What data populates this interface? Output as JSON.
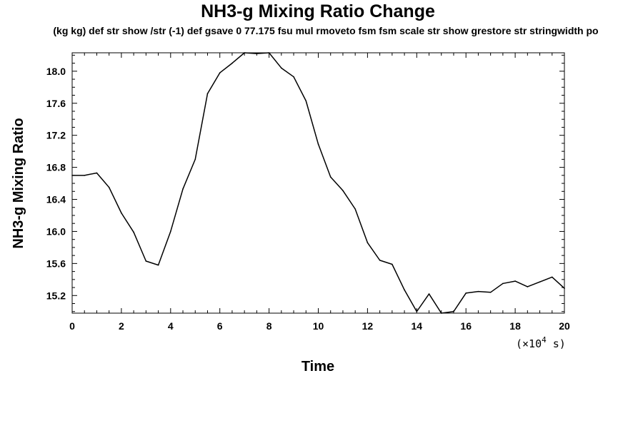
{
  "chart_data": {
    "type": "line",
    "title": "NH3-g Mixing Ratio Change",
    "subtitle": "(kg kg) def str show /str (-1) def gsave 0 77.175 fsu mul rmoveto fsm fsm scale str show grestore str stringwidth po",
    "xlabel": "Time",
    "ylabel": "NH3-g Mixing Ratio",
    "x_scale_note": {
      "open": "(×10",
      "exponent": "4",
      "close": " s)"
    },
    "xlim": [
      0,
      20
    ],
    "ylim": [
      14.98,
      18.23
    ],
    "x_ticks": [
      0,
      2,
      4,
      6,
      8,
      10,
      12,
      14,
      16,
      18,
      20
    ],
    "x_tick_labels": [
      "0",
      "2",
      "4",
      "6",
      "8",
      "10",
      "12",
      "14",
      "16",
      "18",
      "20"
    ],
    "y_ticks": [
      15.2,
      15.6,
      16.0,
      16.4,
      16.8,
      17.2,
      17.6,
      18.0
    ],
    "y_tick_labels": [
      "15.2",
      "15.6",
      "16.0",
      "16.4",
      "16.8",
      "17.2",
      "17.6",
      "18.0"
    ],
    "grid": false,
    "line_color": "#000000",
    "series": [
      {
        "x": [
          0,
          0.5,
          1,
          1.5,
          2,
          2.5,
          3,
          3.5,
          4,
          4.5,
          5,
          5.5,
          6,
          6.5,
          7,
          7.5,
          8,
          8.5,
          9,
          9.5,
          10,
          10.5,
          11,
          11.5,
          12,
          12.5,
          13,
          13.5,
          14,
          14.5,
          15,
          15.5,
          16,
          16.5,
          17,
          17.5,
          18,
          18.5,
          19,
          19.5,
          20
        ],
        "y": [
          16.7,
          16.7,
          16.73,
          16.55,
          16.23,
          15.99,
          15.63,
          15.58,
          16.0,
          16.53,
          16.9,
          17.72,
          17.98,
          18.1,
          18.23,
          18.22,
          18.23,
          18.04,
          17.93,
          17.63,
          17.09,
          16.68,
          16.51,
          16.28,
          15.86,
          15.64,
          15.59,
          15.27,
          15.0,
          15.22,
          14.98,
          15.0,
          15.23,
          15.25,
          15.24,
          15.35,
          15.38,
          15.31,
          15.37,
          15.43,
          15.29
        ]
      }
    ]
  }
}
